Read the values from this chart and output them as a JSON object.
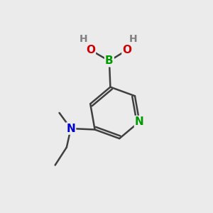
{
  "bg_color": "#ebebeb",
  "atom_colors": {
    "C": "#404040",
    "N_pyridine": "#009900",
    "N_amine": "#0000cc",
    "B": "#009900",
    "O": "#cc0000",
    "H": "#808080"
  },
  "bond_color": "#404040",
  "bond_width": 1.8,
  "font_size": 11
}
